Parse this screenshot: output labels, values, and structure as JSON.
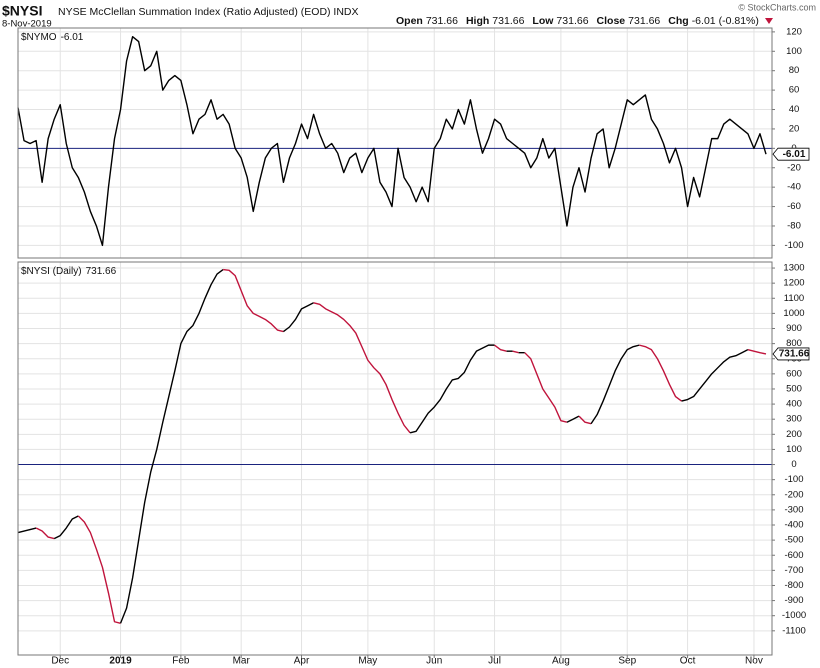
{
  "header": {
    "symbol": "$NYSI",
    "name": "NYSE McClellan Summation Index (Ratio Adjusted) (EOD) INDX",
    "date": "8-Nov-2019",
    "credit": "© StockCharts.com",
    "quote": [
      {
        "label": "Open",
        "value": 731.66
      },
      {
        "label": "High",
        "value": 731.66
      },
      {
        "label": "Low",
        "value": 731.66
      },
      {
        "label": "Close",
        "value": 731.66
      },
      {
        "label": "Chg",
        "value": -6.01
      }
    ],
    "change_pct": {
      "value": -0.81,
      "label": "(-0.81%)"
    }
  },
  "chart_data": [
    {
      "type": "line",
      "series": [
        {
          "name": "$NYMO",
          "color": "#000000",
          "values": [
            42,
            8,
            5,
            8,
            -35,
            10,
            30,
            45,
            5,
            -20,
            -30,
            -45,
            -65,
            -80,
            -100,
            -40,
            10,
            40,
            90,
            115,
            110,
            80,
            85,
            100,
            60,
            70,
            75,
            70,
            45,
            15,
            30,
            35,
            50,
            30,
            35,
            25,
            0,
            -10,
            -30,
            -65,
            -35,
            -10,
            0,
            5,
            -35,
            -10,
            5,
            25,
            10,
            35,
            15,
            0,
            5,
            -5,
            -25,
            -10,
            -5,
            -25,
            -10,
            0,
            -35,
            -45,
            -60,
            0,
            -30,
            -40,
            -55,
            -40,
            -55,
            0,
            10,
            30,
            20,
            40,
            25,
            50,
            20,
            -5,
            10,
            30,
            25,
            10,
            5,
            0,
            -5,
            -20,
            -10,
            10,
            -10,
            0,
            -40,
            -80,
            -40,
            -20,
            -45,
            -10,
            15,
            20,
            -20,
            0,
            25,
            50,
            45,
            50,
            55,
            30,
            20,
            5,
            -15,
            0,
            -20,
            -60,
            -30,
            -50,
            -20,
            10,
            10,
            25,
            30,
            25,
            20,
            15,
            0,
            15,
            -6.01
          ]
        }
      ],
      "ylim": [
        -113,
        124
      ],
      "yticks": [
        120,
        100,
        80,
        60,
        40,
        20,
        0,
        -20,
        -40,
        -60,
        -80,
        -100
      ],
      "zero_line_color": "#1a237e",
      "grid": true
    },
    {
      "type": "line",
      "categories": [
        null,
        null,
        null,
        null,
        null,
        null,
        null,
        "Dec",
        null,
        null,
        null,
        null,
        null,
        null,
        null,
        null,
        null,
        "2019",
        null,
        null,
        null,
        null,
        null,
        null,
        null,
        null,
        null,
        "Feb",
        null,
        null,
        null,
        null,
        null,
        null,
        null,
        null,
        null,
        "Mar",
        null,
        null,
        null,
        null,
        null,
        null,
        null,
        null,
        null,
        "Apr",
        null,
        null,
        null,
        null,
        null,
        null,
        null,
        null,
        null,
        null,
        "May",
        null,
        null,
        null,
        null,
        null,
        null,
        null,
        null,
        null,
        null,
        "Jun",
        null,
        null,
        null,
        null,
        null,
        null,
        null,
        null,
        null,
        "Jul",
        null,
        null,
        null,
        null,
        null,
        null,
        null,
        null,
        null,
        null,
        "Aug",
        null,
        null,
        null,
        null,
        null,
        null,
        null,
        null,
        null,
        null,
        "Sep",
        null,
        null,
        null,
        null,
        null,
        null,
        null,
        null,
        null,
        "Oct",
        null,
        null,
        null,
        null,
        null,
        null,
        null,
        null,
        null,
        null,
        "Nov",
        null,
        null
      ],
      "series": [
        {
          "name": "$NYSI (Daily)",
          "color": "#000000",
          "down_color": "#c0143c",
          "values": [
            -450,
            -440,
            -430,
            -420,
            -440,
            -480,
            -490,
            -470,
            -420,
            -360,
            -340,
            -380,
            -450,
            -560,
            -680,
            -850,
            -1040,
            -1050,
            -950,
            -750,
            -500,
            -250,
            -50,
            100,
            280,
            450,
            620,
            800,
            880,
            920,
            1000,
            1100,
            1190,
            1260,
            1290,
            1285,
            1250,
            1150,
            1050,
            1000,
            980,
            960,
            930,
            890,
            880,
            910,
            960,
            1030,
            1050,
            1070,
            1060,
            1030,
            1010,
            990,
            960,
            920,
            870,
            780,
            690,
            640,
            600,
            530,
            430,
            340,
            260,
            210,
            220,
            280,
            340,
            380,
            430,
            500,
            560,
            570,
            610,
            690,
            750,
            770,
            790,
            790,
            760,
            750,
            750,
            740,
            740,
            700,
            600,
            500,
            440,
            380,
            290,
            280,
            300,
            320,
            280,
            270,
            330,
            420,
            520,
            620,
            700,
            760,
            780,
            790,
            780,
            760,
            700,
            620,
            530,
            450,
            420,
            430,
            450,
            500,
            550,
            600,
            640,
            680,
            710,
            720,
            740,
            760,
            750,
            740,
            731.66
          ]
        }
      ],
      "ylim": [
        -1260,
        1340
      ],
      "yticks": [
        1300,
        1200,
        1100,
        1000,
        900,
        800,
        700,
        600,
        500,
        400,
        300,
        200,
        100,
        0,
        -100,
        -200,
        -300,
        -400,
        -500,
        -600,
        -700,
        -800,
        -900,
        -1000,
        -1100
      ],
      "zero_line_color": "#1a237e",
      "grid": true
    }
  ]
}
